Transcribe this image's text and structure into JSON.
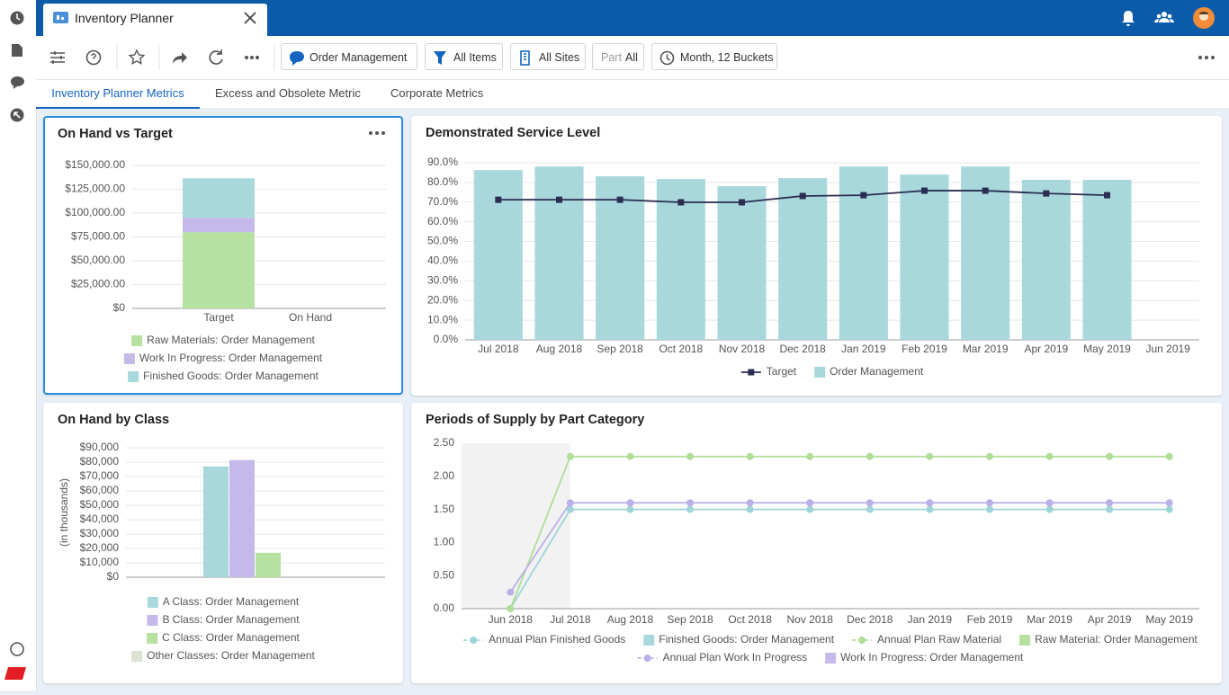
{
  "header": {
    "tab_title": "Inventory Planner"
  },
  "toolbar": {
    "context": "Order Management",
    "filters": [
      "All Items",
      "All Sites"
    ],
    "part": {
      "label": "Part",
      "value": "All"
    },
    "buckets": "Month, 12 Buckets"
  },
  "tabs": [
    "Inventory Planner Metrics",
    "Excess and Obsolete Metric",
    "Corporate Metrics"
  ],
  "chart_data": [
    {
      "type": "stacked_bar",
      "title": "On Hand vs Target",
      "categories": [
        "Target",
        "On Hand"
      ],
      "series": [
        {
          "name": "Raw Materials: Order Management",
          "color": "#b7e1a1",
          "values": [
            80000,
            0
          ]
        },
        {
          "name": "Work In Progress: Order Management",
          "color": "#c5b9ea",
          "values": [
            15000,
            0
          ]
        },
        {
          "name": "Finished Goods: Order Management",
          "color": "#a9d8dc",
          "values": [
            41500,
            0
          ]
        }
      ],
      "ylim": [
        0,
        150000
      ],
      "yticks": [
        {
          "value": 0,
          "label": "$0"
        },
        {
          "value": 25000,
          "label": "$25,000.00"
        },
        {
          "value": 50000,
          "label": "$50,000.00"
        },
        {
          "value": 75000,
          "label": "$75,000.00"
        },
        {
          "value": 100000,
          "label": "$100,000.00"
        },
        {
          "value": 125000,
          "label": "$125,000.00"
        },
        {
          "value": 150000,
          "label": "$150,000.00"
        }
      ],
      "grid": true,
      "legend": "bottom"
    },
    {
      "type": "combo",
      "title": "Demonstrated Service Level",
      "categories": [
        "Jul 2018",
        "Aug 2018",
        "Sep 2018",
        "Oct 2018",
        "Nov 2018",
        "Dec 2018",
        "Jan 2019",
        "Feb 2019",
        "Mar 2019",
        "Apr 2019",
        "May 2019",
        "Jun 2019"
      ],
      "series": [
        {
          "name": "Target",
          "type": "line",
          "marker": "square",
          "color": "#2b2d52",
          "values": [
            71.2,
            71.2,
            71.2,
            69.9,
            69.9,
            73.1,
            73.5,
            75.8,
            75.8,
            74.4,
            73.5,
            null
          ]
        },
        {
          "name": "Order Management",
          "type": "bar",
          "color": "#a9d8dc",
          "values": [
            86.3,
            88.1,
            83.1,
            81.7,
            78.1,
            82.2,
            88.1,
            84.0,
            88.1,
            81.3,
            81.3,
            null
          ]
        }
      ],
      "ylim": [
        0,
        90
      ],
      "yticks": [
        {
          "value": 0,
          "label": "0.0%"
        },
        {
          "value": 10,
          "label": "10.0%"
        },
        {
          "value": 20,
          "label": "20.0%"
        },
        {
          "value": 30,
          "label": "30.0%"
        },
        {
          "value": 40,
          "label": "40.0%"
        },
        {
          "value": 50,
          "label": "50.0%"
        },
        {
          "value": 60,
          "label": "60.0%"
        },
        {
          "value": 70,
          "label": "70.0%"
        },
        {
          "value": 80,
          "label": "80.0%"
        },
        {
          "value": 90,
          "label": "90.0%"
        }
      ],
      "grid": true,
      "legend": "bottom"
    },
    {
      "type": "bar",
      "title": "On Hand by Class",
      "y_label": "(in thousands)",
      "categories": [
        null
      ],
      "series": [
        {
          "name": "A Class: Order Management",
          "color": "#a9d8dc",
          "values": [
            77000
          ]
        },
        {
          "name": "B Class: Order Management",
          "color": "#c5b9ea",
          "values": [
            81500
          ]
        },
        {
          "name": "C Class: Order Management",
          "color": "#b7e1a1",
          "values": [
            17000
          ]
        },
        {
          "name": "Other Classes: Order Management",
          "color": "#dde3d3",
          "values": [
            0
          ]
        }
      ],
      "ylim": [
        0,
        90000
      ],
      "yticks": [
        {
          "value": 0,
          "label": "$0"
        },
        {
          "value": 10000,
          "label": "$10,000"
        },
        {
          "value": 20000,
          "label": "$20,000"
        },
        {
          "value": 30000,
          "label": "$30,000"
        },
        {
          "value": 40000,
          "label": "$40,000"
        },
        {
          "value": 50000,
          "label": "$50,000"
        },
        {
          "value": 60000,
          "label": "$60,000"
        },
        {
          "value": 70000,
          "label": "$70,000"
        },
        {
          "value": 80000,
          "label": "$80,000"
        },
        {
          "value": 90000,
          "label": "$90,000"
        }
      ],
      "grid": true,
      "legend": "bottom"
    },
    {
      "type": "combo",
      "title": "Periods of Supply by Part Category",
      "categories": [
        "Jun 2018",
        "Jul 2018",
        "Aug 2018",
        "Sep 2018",
        "Oct 2018",
        "Nov 2018",
        "Dec 2018",
        "Jan 2019",
        "Feb 2019",
        "Mar 2019",
        "Apr 2019",
        "May 2019"
      ],
      "series": [
        {
          "name": "Annual Plan Finished Goods",
          "type": "line",
          "marker": "circle",
          "color": "#9fd4d9",
          "values": [
            0,
            1.5,
            1.5,
            1.5,
            1.5,
            1.5,
            1.5,
            1.5,
            1.5,
            1.5,
            1.5,
            1.5
          ]
        },
        {
          "name": "Finished Goods: Order Management",
          "type": "bar",
          "color": "#a9d8dc",
          "values": [
            null,
            null,
            null,
            null,
            null,
            null,
            null,
            null,
            null,
            null,
            null,
            null
          ]
        },
        {
          "name": "Annual Plan Raw Material",
          "type": "line",
          "marker": "circle",
          "color": "#b0dd98",
          "values": [
            0,
            2.3,
            2.3,
            2.3,
            2.3,
            2.3,
            2.3,
            2.3,
            2.3,
            2.3,
            2.3,
            2.3
          ]
        },
        {
          "name": "Raw Material: Order Management",
          "type": "bar",
          "color": "#b7e1a1",
          "values": [
            null,
            null,
            null,
            null,
            null,
            null,
            null,
            null,
            null,
            null,
            null,
            null
          ]
        },
        {
          "name": "Annual Plan Work In Progress",
          "type": "line",
          "marker": "circle",
          "color": "#bcaee8",
          "values": [
            0.25,
            1.6,
            1.6,
            1.6,
            1.6,
            1.6,
            1.6,
            1.6,
            1.6,
            1.6,
            1.6,
            1.6
          ]
        },
        {
          "name": "Work In Progress: Order Management",
          "type": "bar",
          "color": "#c5b9ea",
          "values": [
            null,
            null,
            null,
            null,
            null,
            null,
            null,
            null,
            null,
            null,
            null,
            null
          ]
        }
      ],
      "ylim": [
        0,
        2.5
      ],
      "yticks": [
        {
          "value": 0,
          "label": "0.00"
        },
        {
          "value": 0.5,
          "label": "0.50"
        },
        {
          "value": 1,
          "label": "1.00"
        },
        {
          "value": 1.5,
          "label": "1.50"
        },
        {
          "value": 2,
          "label": "2.00"
        },
        {
          "value": 2.5,
          "label": "2.50"
        }
      ],
      "grid": false,
      "legend": "bottom"
    }
  ]
}
